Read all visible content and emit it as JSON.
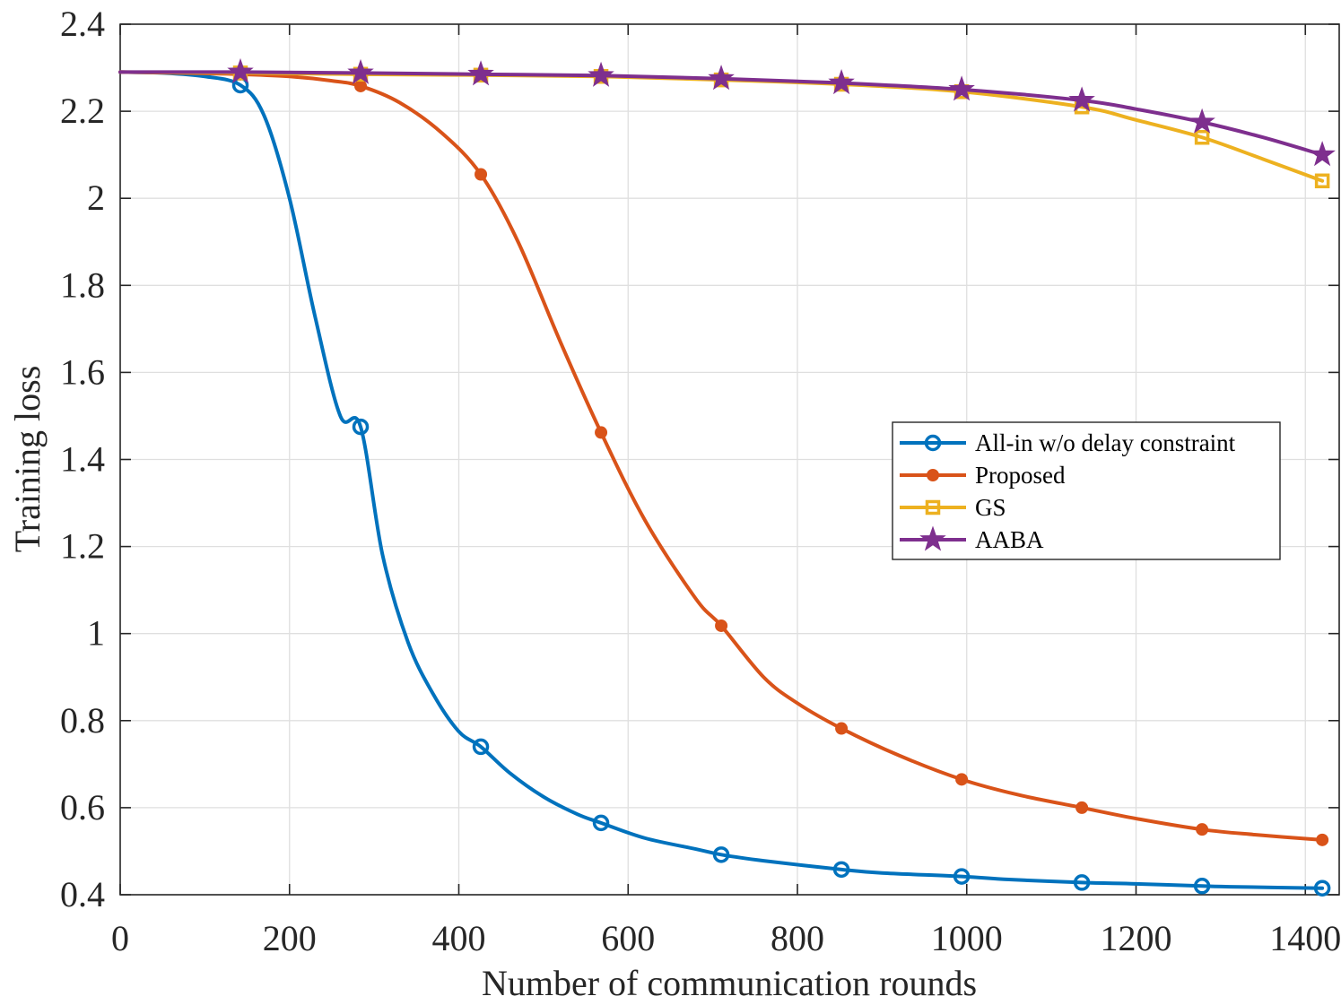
{
  "chart_data": {
    "type": "line",
    "title": "",
    "xlabel": "Number of communication rounds",
    "ylabel": "Training loss",
    "xlim": [
      0,
      1440
    ],
    "ylim": [
      0.4,
      2.4
    ],
    "xticks": [
      0,
      200,
      400,
      600,
      800,
      1000,
      1200,
      1400
    ],
    "xtick_labels": [
      "0",
      "200",
      "400",
      "600",
      "800",
      "1000",
      "1200",
      "1400"
    ],
    "yticks": [
      0.4,
      0.6,
      0.8,
      1.0,
      1.2,
      1.4,
      1.6,
      1.8,
      2.0,
      2.2,
      2.4
    ],
    "ytick_labels": [
      "0.4",
      "0.6",
      "0.8",
      "1",
      "1.2",
      "1.4",
      "1.6",
      "1.8",
      "2",
      "2.2",
      "2.4"
    ],
    "grid": true,
    "legend_position": "middle-right",
    "series": [
      {
        "name": "All-in w/o delay constraint",
        "color": "#0072BD",
        "marker": "circle",
        "x": [
          0,
          50,
          100,
          142,
          170,
          200,
          230,
          260,
          284,
          310,
          340,
          370,
          400,
          426,
          460,
          500,
          540,
          568,
          620,
          680,
          710,
          760,
          852,
          900,
          994,
          1050,
          1136,
          1200,
          1278,
          1320,
          1420
        ],
        "y": [
          2.29,
          2.288,
          2.28,
          2.26,
          2.19,
          2.0,
          1.73,
          1.5,
          1.475,
          1.18,
          0.98,
          0.86,
          0.775,
          0.74,
          0.68,
          0.625,
          0.585,
          0.565,
          0.53,
          0.505,
          0.492,
          0.478,
          0.458,
          0.45,
          0.442,
          0.435,
          0.428,
          0.425,
          0.42,
          0.418,
          0.415
        ],
        "marker_x": [
          142,
          284,
          426,
          568,
          710,
          852,
          994,
          1136,
          1278,
          1420
        ],
        "marker_y": [
          2.26,
          1.475,
          0.74,
          0.565,
          0.492,
          0.458,
          0.442,
          0.428,
          0.42,
          0.415
        ]
      },
      {
        "name": "Proposed",
        "color": "#D95319",
        "marker": "filled-circle",
        "x": [
          0,
          100,
          142,
          200,
          250,
          284,
          330,
          380,
          426,
          470,
          520,
          568,
          620,
          680,
          710,
          760,
          800,
          852,
          920,
          994,
          1060,
          1136,
          1200,
          1278,
          1340,
          1420
        ],
        "y": [
          2.29,
          2.287,
          2.285,
          2.28,
          2.27,
          2.258,
          2.22,
          2.15,
          2.055,
          1.9,
          1.67,
          1.462,
          1.26,
          1.08,
          1.018,
          0.9,
          0.84,
          0.782,
          0.72,
          0.665,
          0.63,
          0.6,
          0.575,
          0.55,
          0.538,
          0.526
        ],
        "marker_x": [
          142,
          284,
          426,
          568,
          710,
          852,
          994,
          1136,
          1278,
          1420
        ],
        "marker_y": [
          2.285,
          2.258,
          2.055,
          1.462,
          1.018,
          0.782,
          0.665,
          0.6,
          0.55,
          0.526
        ]
      },
      {
        "name": "GS",
        "color": "#EDB120",
        "marker": "square",
        "x": [
          0,
          142,
          284,
          426,
          568,
          710,
          852,
          994,
          1136,
          1200,
          1278,
          1350,
          1420
        ],
        "y": [
          2.29,
          2.288,
          2.285,
          2.283,
          2.28,
          2.272,
          2.262,
          2.245,
          2.21,
          2.18,
          2.14,
          2.09,
          2.04
        ],
        "marker_x": [
          142,
          284,
          426,
          568,
          710,
          852,
          994,
          1136,
          1278,
          1420
        ],
        "marker_y": [
          2.288,
          2.285,
          2.283,
          2.28,
          2.272,
          2.262,
          2.245,
          2.21,
          2.14,
          2.04
        ]
      },
      {
        "name": "AABA",
        "color": "#7E2F8E",
        "marker": "star",
        "x": [
          0,
          142,
          284,
          426,
          568,
          710,
          852,
          994,
          1136,
          1200,
          1278,
          1350,
          1420
        ],
        "y": [
          2.29,
          2.29,
          2.288,
          2.285,
          2.282,
          2.275,
          2.265,
          2.25,
          2.225,
          2.205,
          2.175,
          2.14,
          2.1
        ],
        "marker_x": [
          142,
          284,
          426,
          568,
          710,
          852,
          994,
          1136,
          1278,
          1420
        ],
        "marker_y": [
          2.29,
          2.288,
          2.285,
          2.282,
          2.275,
          2.265,
          2.25,
          2.225,
          2.175,
          2.1
        ]
      }
    ]
  }
}
